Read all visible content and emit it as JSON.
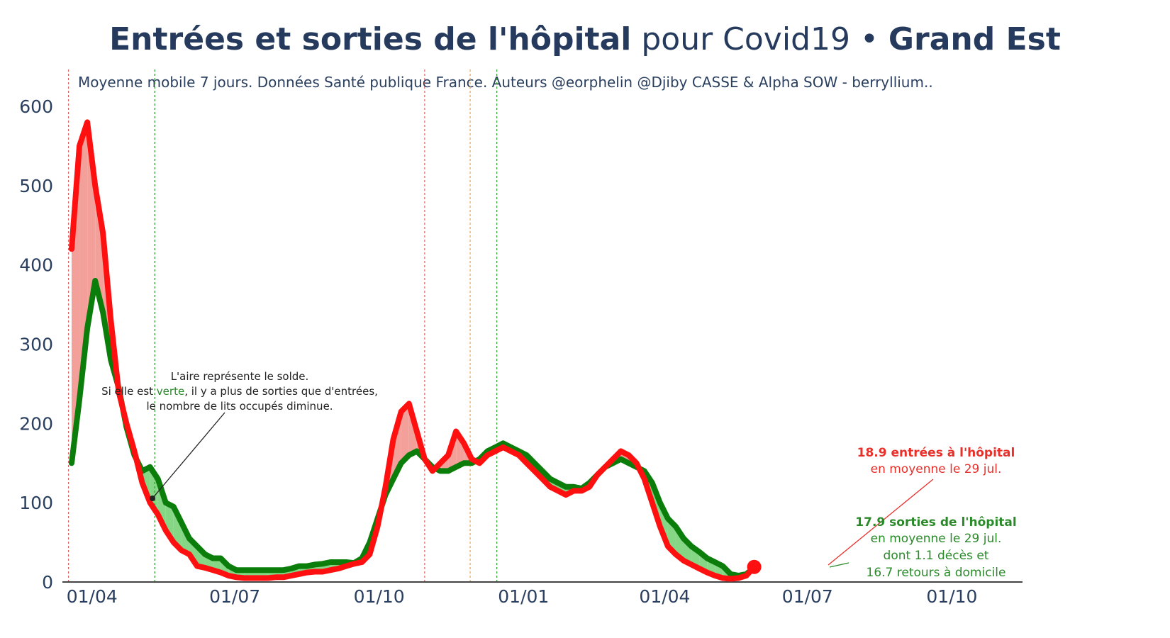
{
  "title": {
    "part1": "Entrées et sorties de l'hôpital",
    "part2": " pour Covid19 • ",
    "part3": "Grand Est"
  },
  "subtitle": "Moyenne mobile 7 jours. Données Santé publique France. Auteurs @eorphelin @Djiby CASSE & Alpha SOW - berryllium..",
  "chart_data": {
    "type": "line",
    "x_start": "2020-03-19",
    "x_step_days": 5,
    "xlim": [
      "2020-03-05",
      "2021-11-15"
    ],
    "ylim": [
      0,
      600
    ],
    "yticks": [
      0,
      100,
      200,
      300,
      400,
      500,
      600
    ],
    "xticks": [
      {
        "date": "2020-04-01",
        "label": "01/04"
      },
      {
        "date": "2020-07-01",
        "label": "01/07"
      },
      {
        "date": "2020-10-01",
        "label": "01/10"
      },
      {
        "date": "2021-01-01",
        "label": "01/01"
      },
      {
        "date": "2021-04-01",
        "label": "01/04"
      },
      {
        "date": "2021-07-01",
        "label": "01/07"
      },
      {
        "date": "2021-10-01",
        "label": "01/10"
      }
    ],
    "vlines": [
      {
        "date": "2020-03-17",
        "color": "#e06060"
      },
      {
        "date": "2020-05-11",
        "color": "#2a9a2a"
      },
      {
        "date": "2020-10-30",
        "color": "#e06060"
      },
      {
        "date": "2020-11-28",
        "color": "#f0a050"
      },
      {
        "date": "2020-12-15",
        "color": "#2a9a2a"
      }
    ],
    "series": [
      {
        "name": "entrées",
        "color": "#ff1010",
        "values": [
          420,
          550,
          580,
          500,
          440,
          330,
          240,
          200,
          165,
          125,
          100,
          85,
          65,
          50,
          40,
          35,
          20,
          18,
          15,
          12,
          8,
          6,
          5,
          5,
          5,
          5,
          6,
          6,
          8,
          10,
          12,
          13,
          13,
          15,
          17,
          20,
          23,
          25,
          35,
          70,
          120,
          180,
          215,
          225,
          190,
          155,
          140,
          150,
          160,
          190,
          175,
          155,
          150,
          160,
          165,
          170,
          165,
          160,
          150,
          140,
          130,
          120,
          115,
          110,
          115,
          115,
          120,
          135,
          145,
          155,
          165,
          160,
          150,
          130,
          100,
          70,
          45,
          35,
          27,
          22,
          17,
          12,
          8,
          5,
          4,
          5,
          8,
          19
        ]
      },
      {
        "name": "sorties",
        "color": "#0b7d0b",
        "values": [
          150,
          230,
          320,
          380,
          340,
          280,
          245,
          195,
          160,
          140,
          145,
          130,
          100,
          95,
          75,
          55,
          45,
          35,
          30,
          30,
          20,
          15,
          15,
          15,
          15,
          15,
          15,
          15,
          17,
          20,
          20,
          22,
          23,
          25,
          25,
          25,
          24,
          30,
          50,
          80,
          110,
          130,
          150,
          160,
          165,
          155,
          145,
          140,
          140,
          145,
          150,
          150,
          155,
          165,
          170,
          175,
          170,
          165,
          160,
          150,
          140,
          130,
          125,
          120,
          120,
          118,
          125,
          135,
          145,
          150,
          155,
          150,
          145,
          140,
          125,
          100,
          80,
          70,
          55,
          45,
          38,
          30,
          25,
          20,
          10,
          8,
          10,
          18
        ]
      }
    ],
    "annotations": {
      "solde": [
        "L'aire représente le solde.",
        "Si elle est ",
        "verte",
        ", il y a plus de sorties que d'entrées,",
        "le nombre de lits occupés diminue."
      ],
      "entrees": [
        "18.9 entrées à l'hôpital",
        "en moyenne le 29 jul."
      ],
      "sorties": [
        "17.9 sorties de l'hôpital",
        "en moyenne le 29 jul.",
        "dont 1.1 décès et",
        "16.7 retours à domicile"
      ]
    }
  },
  "colors": {
    "entrees": "#ff1010",
    "sorties": "#0b7d0b",
    "fill_red": "#f4a09a",
    "fill_green": "#85d685",
    "annotation_red": "#e8302b",
    "annotation_green": "#2a8a2a"
  }
}
